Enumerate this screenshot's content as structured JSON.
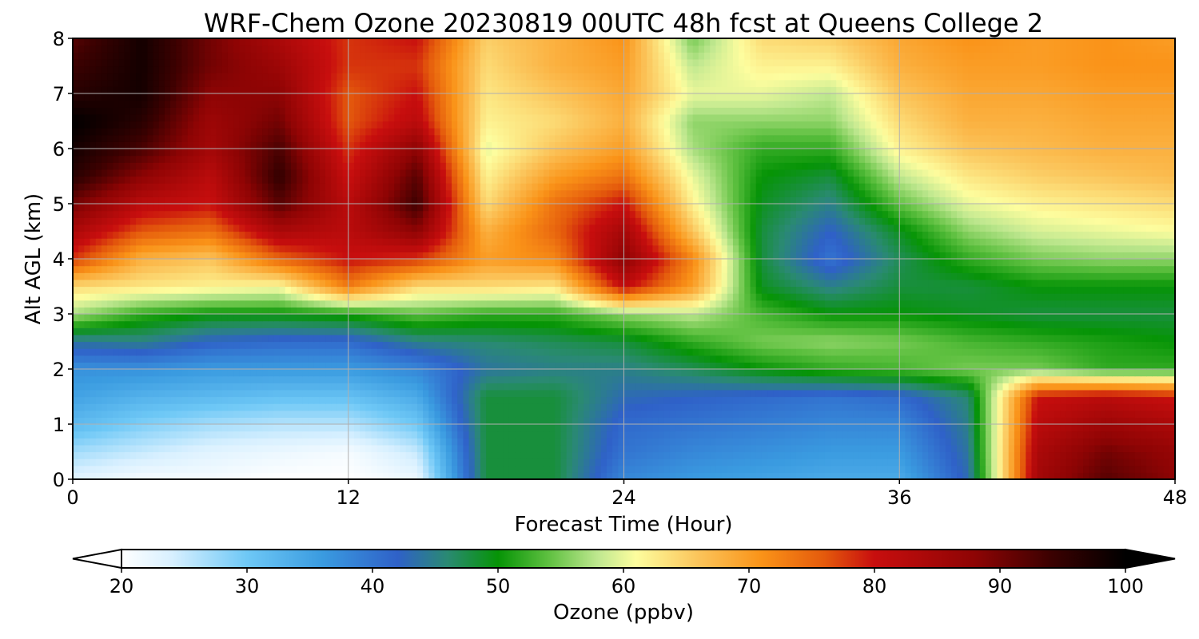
{
  "chart_data": {
    "type": "heatmap",
    "title": "WRF-Chem Ozone  20230819 00UTC 48h fcst at Queens College 2",
    "xlabel": "Forecast Time (Hour)",
    "ylabel": "Alt AGL (km)",
    "xlim": [
      0,
      48
    ],
    "ylim": [
      0,
      8
    ],
    "xticks": [
      0,
      12,
      24,
      36,
      48
    ],
    "yticks": [
      0,
      1,
      2,
      3,
      4,
      5,
      6,
      7,
      8
    ],
    "grid": true,
    "x": [
      0,
      3,
      6,
      9,
      12,
      15,
      18,
      21,
      24,
      27,
      30,
      33,
      36,
      39,
      42,
      45,
      48
    ],
    "y": [
      0,
      0.5,
      1,
      1.5,
      2,
      2.5,
      3,
      3.5,
      4,
      4.5,
      5,
      5.5,
      6,
      6.5,
      7,
      7.5,
      8
    ],
    "z": [
      [
        23,
        21,
        21,
        20,
        20,
        22,
        48,
        48,
        38,
        36,
        35,
        34,
        34,
        43,
        85,
        92,
        88
      ],
      [
        27,
        25,
        23,
        22,
        21,
        25,
        48,
        48,
        40,
        38,
        37,
        36,
        36,
        44,
        84,
        90,
        87
      ],
      [
        32,
        29,
        27,
        26,
        26,
        30,
        48,
        48,
        41,
        40,
        39,
        38,
        38,
        45,
        82,
        86,
        84
      ],
      [
        35,
        33,
        32,
        31,
        31,
        34,
        48,
        48,
        43,
        42,
        41,
        40,
        41,
        46,
        80,
        82,
        80
      ],
      [
        37,
        37,
        36,
        36,
        36,
        38,
        44,
        45,
        45,
        47,
        50,
        52,
        53,
        55,
        55,
        52,
        52
      ],
      [
        44,
        45,
        42,
        41,
        41,
        45,
        46,
        47,
        48,
        52,
        55,
        56,
        55,
        53,
        52,
        51,
        50
      ],
      [
        57,
        52,
        50,
        50,
        51,
        54,
        52,
        52,
        56,
        58,
        53,
        50,
        50,
        49,
        48,
        48,
        48
      ],
      [
        64,
        63,
        62,
        61,
        73,
        64,
        64,
        63,
        81,
        70,
        49,
        45,
        48,
        48,
        50,
        50,
        50
      ],
      [
        78,
        68,
        66,
        75,
        80,
        78,
        70,
        72,
        88,
        72,
        48,
        40,
        47,
        52,
        55,
        56,
        56
      ],
      [
        84,
        76,
        74,
        84,
        82,
        88,
        68,
        75,
        85,
        66,
        48,
        42,
        49,
        56,
        59,
        60,
        61
      ],
      [
        90,
        82,
        80,
        92,
        82,
        94,
        64,
        74,
        80,
        62,
        49,
        45,
        54,
        60,
        62,
        63,
        64
      ],
      [
        96,
        88,
        82,
        95,
        80,
        92,
        62,
        70,
        74,
        60,
        50,
        48,
        58,
        63,
        65,
        66,
        67
      ],
      [
        98,
        93,
        85,
        93,
        78,
        88,
        60,
        66,
        70,
        57,
        52,
        52,
        62,
        66,
        67,
        68,
        68
      ],
      [
        100,
        96,
        86,
        90,
        76,
        82,
        62,
        64,
        68,
        56,
        56,
        56,
        64,
        68,
        68,
        69,
        69
      ],
      [
        96,
        98,
        88,
        88,
        76,
        80,
        63,
        66,
        69,
        60,
        60,
        58,
        66,
        69,
        69,
        70,
        70
      ],
      [
        94,
        98,
        90,
        86,
        78,
        78,
        64,
        68,
        70,
        58,
        62,
        62,
        68,
        70,
        70,
        71,
        71
      ],
      [
        92,
        98,
        90,
        84,
        78,
        80,
        65,
        68,
        71,
        55,
        64,
        65,
        69,
        71,
        70,
        71,
        70
      ]
    ],
    "colorbar": {
      "label": "Ozone  (ppbv)",
      "min": 20,
      "max": 100,
      "ticks": [
        20,
        30,
        40,
        50,
        60,
        70,
        80,
        90,
        100
      ],
      "extend": "both",
      "stops": [
        [
          20,
          "#ffffff"
        ],
        [
          24,
          "#d8f0ff"
        ],
        [
          30,
          "#6ec8f6"
        ],
        [
          36,
          "#3a9be0"
        ],
        [
          42,
          "#2f61c8"
        ],
        [
          46,
          "#2a8a72"
        ],
        [
          50,
          "#069406"
        ],
        [
          54,
          "#5ec040"
        ],
        [
          58,
          "#c0e890"
        ],
        [
          61,
          "#fdfd9e"
        ],
        [
          66,
          "#fbc45a"
        ],
        [
          71,
          "#fa9318"
        ],
        [
          76,
          "#e45a0c"
        ],
        [
          80,
          "#c80e0e"
        ],
        [
          88,
          "#8e0404"
        ],
        [
          94,
          "#3c0101"
        ],
        [
          100,
          "#000000"
        ]
      ]
    }
  }
}
